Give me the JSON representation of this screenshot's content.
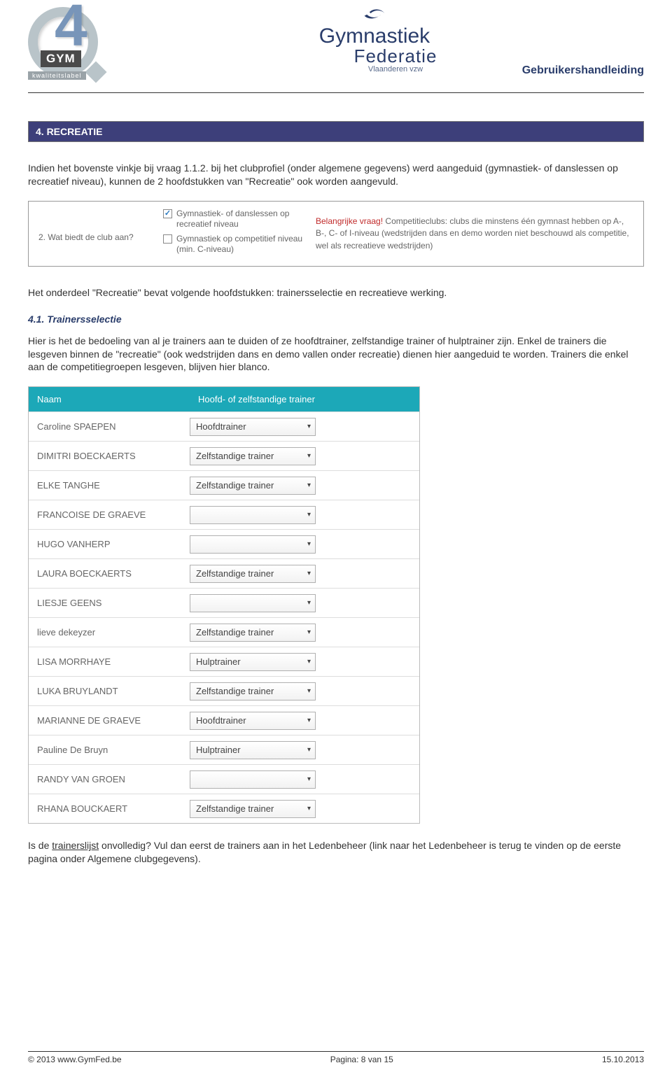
{
  "header": {
    "q4": {
      "gym": "GYM",
      "kw": "kwaliteitslabel",
      "four": "4"
    },
    "fed": {
      "line1": "Gymnastiek",
      "line2": "Federatie",
      "sub": "Vlaanderen vzw"
    },
    "doc_title": "Gebruikershandleiding"
  },
  "section_bar": "4. RECREATIE",
  "intro": {
    "p1a": "Indien het bovenste vinkje bij vraag 1.1.2. bij het clubprofiel (onder algemene gegevens) werd aangeduid (gymnastiek- of danslessen op recreatief niveau), kunnen de 2 hoofdstukken van \"Recreatie\" ook worden aangevuld."
  },
  "infobox": {
    "question": "2. Wat biedt de club aan?",
    "opt1_checked": true,
    "opt1": "Gymnastiek- of danslessen op recreatief niveau",
    "opt2_checked": false,
    "opt2": "Gymnastiek op competitief niveau (min. C-niveau)",
    "important_label": "Belangrijke vraag!",
    "important_text": " Competitieclubs: clubs die minstens één gymnast hebben op A-, B-, C- of I-niveau (wedstrijden dans en demo worden niet beschouwd als competitie, wel als recreatieve wedstrijden)"
  },
  "between_text": "Het onderdeel \"Recreatie\" bevat volgende hoofdstukken: trainersselectie en recreatieve werking.",
  "sub41": {
    "heading": "4.1. Trainersselectie",
    "p1": "Hier is het de bedoeling van al je trainers aan te duiden of ze hoofdtrainer, zelfstandige trainer of hulptrainer zijn. Enkel de trainers die lesgeven binnen de \"recreatie\" (ook wedstrijden dans en demo vallen onder recreatie) dienen hier aangeduid te worden. Trainers die enkel aan de competitiegroepen lesgeven, blijven hier blanco."
  },
  "table": {
    "head_name": "Naam",
    "head_role": "Hoofd- of zelfstandige trainer",
    "rows": [
      {
        "name": "Caroline SPAEPEN",
        "role": "Hoofdtrainer"
      },
      {
        "name": "DIMITRI BOECKAERTS",
        "role": "Zelfstandige trainer"
      },
      {
        "name": "ELKE TANGHE",
        "role": "Zelfstandige trainer"
      },
      {
        "name": "FRANCOISE DE GRAEVE",
        "role": ""
      },
      {
        "name": "HUGO VANHERP",
        "role": ""
      },
      {
        "name": "LAURA BOECKAERTS",
        "role": "Zelfstandige trainer"
      },
      {
        "name": "LIESJE GEENS",
        "role": ""
      },
      {
        "name": "lieve dekeyzer",
        "role": "Zelfstandige trainer"
      },
      {
        "name": "LISA MORRHAYE",
        "role": "Hulptrainer"
      },
      {
        "name": "LUKA BRUYLANDT",
        "role": "Zelfstandige trainer"
      },
      {
        "name": "MARIANNE DE GRAEVE",
        "role": "Hoofdtrainer"
      },
      {
        "name": "Pauline De Bruyn",
        "role": "Hulptrainer"
      },
      {
        "name": "RANDY VAN GROEN",
        "role": ""
      },
      {
        "name": "RHANA BOUCKAERT",
        "role": "Zelfstandige trainer"
      }
    ]
  },
  "closing": {
    "q_prefix": "Is de ",
    "q_underline": "trainerslijst",
    "q_suffix": " onvolledig? Vul dan eerst de trainers aan in het Ledenbeheer (link naar het Ledenbeheer is terug te vinden op de eerste pagina onder Algemene clubgegevens)."
  },
  "footer": {
    "left": "© 2013 www.GymFed.be",
    "center": "Pagina: 8 van 15",
    "right": "15.10.2013"
  }
}
